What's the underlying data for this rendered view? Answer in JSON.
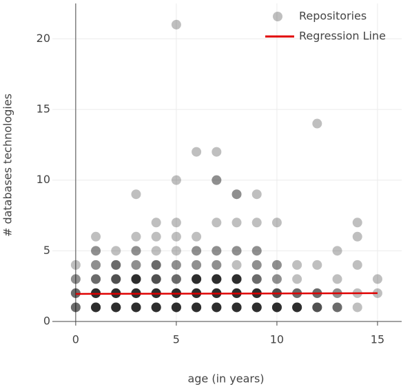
{
  "chart_data": {
    "type": "scatter",
    "x_label": "age (in years)",
    "y_label": "# databases technologies",
    "xlim": [
      -1.16,
      16.2
    ],
    "ylim": [
      0,
      22.5
    ],
    "xticks": [
      0,
      5,
      10,
      15
    ],
    "yticks": [
      0,
      5,
      10,
      15,
      20
    ],
    "grid": true,
    "legend": "top-right",
    "series": [
      {
        "name": "Repositories",
        "color": "rgba(0,0,0,0.25)",
        "mode": "markers",
        "x": [
          0,
          0,
          0,
          0,
          0,
          0,
          0,
          0,
          0,
          1,
          1,
          1,
          1,
          1,
          1,
          1,
          1,
          1,
          1,
          1,
          1,
          1,
          1,
          1,
          1,
          1,
          1,
          1,
          1,
          2,
          2,
          2,
          2,
          2,
          2,
          2,
          2,
          2,
          2,
          2,
          2,
          2,
          2,
          2,
          2,
          2,
          2,
          2,
          2,
          3,
          3,
          3,
          3,
          3,
          3,
          3,
          3,
          3,
          3,
          3,
          3,
          3,
          3,
          3,
          3,
          3,
          3,
          3,
          3,
          3,
          3,
          3,
          3,
          4,
          4,
          4,
          4,
          4,
          4,
          4,
          4,
          4,
          4,
          4,
          4,
          4,
          4,
          4,
          4,
          4,
          4,
          4,
          4,
          4,
          4,
          5,
          5,
          5,
          5,
          5,
          5,
          5,
          5,
          5,
          5,
          5,
          5,
          5,
          5,
          5,
          5,
          5,
          5,
          5,
          5,
          5,
          5,
          6,
          6,
          6,
          6,
          6,
          6,
          6,
          6,
          6,
          6,
          6,
          6,
          6,
          6,
          6,
          6,
          6,
          6,
          6,
          6,
          6,
          6,
          6,
          6,
          7,
          7,
          7,
          7,
          7,
          7,
          7,
          7,
          7,
          7,
          7,
          7,
          7,
          7,
          7,
          7,
          7,
          7,
          7,
          7,
          7,
          7,
          7,
          7,
          7,
          7,
          8,
          8,
          8,
          8,
          8,
          8,
          8,
          8,
          8,
          8,
          8,
          8,
          8,
          8,
          8,
          8,
          8,
          8,
          8,
          8,
          8,
          8,
          8,
          8,
          9,
          9,
          9,
          9,
          9,
          9,
          9,
          9,
          9,
          9,
          9,
          9,
          9,
          9,
          9,
          9,
          9,
          9,
          9,
          9,
          9,
          10,
          10,
          10,
          10,
          10,
          10,
          10,
          10,
          10,
          10,
          10,
          10,
          10,
          10,
          10,
          11,
          11,
          11,
          11,
          11,
          11,
          11,
          11,
          11,
          11,
          11,
          12,
          12,
          12,
          12,
          12,
          12,
          12,
          12,
          12,
          13,
          13,
          13,
          13,
          13,
          13,
          13,
          14,
          14,
          14,
          14,
          14,
          15,
          15
        ],
        "values": [
          1,
          1,
          1,
          2,
          2,
          2,
          3,
          3,
          4,
          1,
          1,
          1,
          1,
          1,
          1,
          2,
          2,
          2,
          2,
          2,
          2,
          3,
          3,
          3,
          4,
          4,
          5,
          5,
          6,
          1,
          1,
          1,
          1,
          1,
          1,
          2,
          2,
          2,
          2,
          2,
          2,
          3,
          3,
          3,
          3,
          4,
          4,
          4,
          5,
          1,
          1,
          1,
          1,
          1,
          1,
          2,
          2,
          2,
          2,
          2,
          2,
          3,
          3,
          3,
          3,
          3,
          3,
          4,
          4,
          5,
          5,
          6,
          9,
          1,
          1,
          1,
          1,
          1,
          1,
          2,
          2,
          2,
          2,
          2,
          2,
          3,
          3,
          3,
          3,
          4,
          4,
          4,
          5,
          6,
          7,
          1,
          1,
          1,
          1,
          1,
          1,
          2,
          2,
          2,
          2,
          2,
          2,
          3,
          3,
          3,
          4,
          4,
          5,
          6,
          7,
          10,
          21,
          1,
          1,
          1,
          1,
          1,
          1,
          2,
          2,
          2,
          2,
          2,
          2,
          3,
          3,
          3,
          3,
          3,
          3,
          4,
          4,
          5,
          5,
          6,
          12,
          1,
          1,
          1,
          1,
          1,
          1,
          2,
          2,
          2,
          2,
          2,
          2,
          3,
          3,
          3,
          3,
          3,
          3,
          4,
          4,
          5,
          5,
          7,
          10,
          10,
          12,
          1,
          1,
          1,
          1,
          1,
          1,
          2,
          2,
          2,
          2,
          2,
          2,
          3,
          3,
          3,
          3,
          3,
          3,
          4,
          5,
          5,
          7,
          9,
          9,
          1,
          1,
          1,
          1,
          1,
          1,
          2,
          2,
          2,
          2,
          2,
          2,
          3,
          3,
          3,
          4,
          4,
          5,
          5,
          7,
          9,
          1,
          1,
          1,
          1,
          1,
          1,
          2,
          2,
          2,
          2,
          3,
          3,
          4,
          4,
          7,
          1,
          1,
          1,
          1,
          1,
          1,
          2,
          2,
          2,
          3,
          4,
          1,
          1,
          1,
          1,
          2,
          2,
          2,
          4,
          14,
          1,
          1,
          1,
          2,
          2,
          3,
          5,
          1,
          2,
          4,
          6,
          7,
          2,
          3
        ]
      },
      {
        "name": "Regression Line",
        "color": "#e00000",
        "mode": "lines",
        "x": [
          0,
          15
        ],
        "values": [
          1.95,
          2.0
        ]
      }
    ]
  }
}
